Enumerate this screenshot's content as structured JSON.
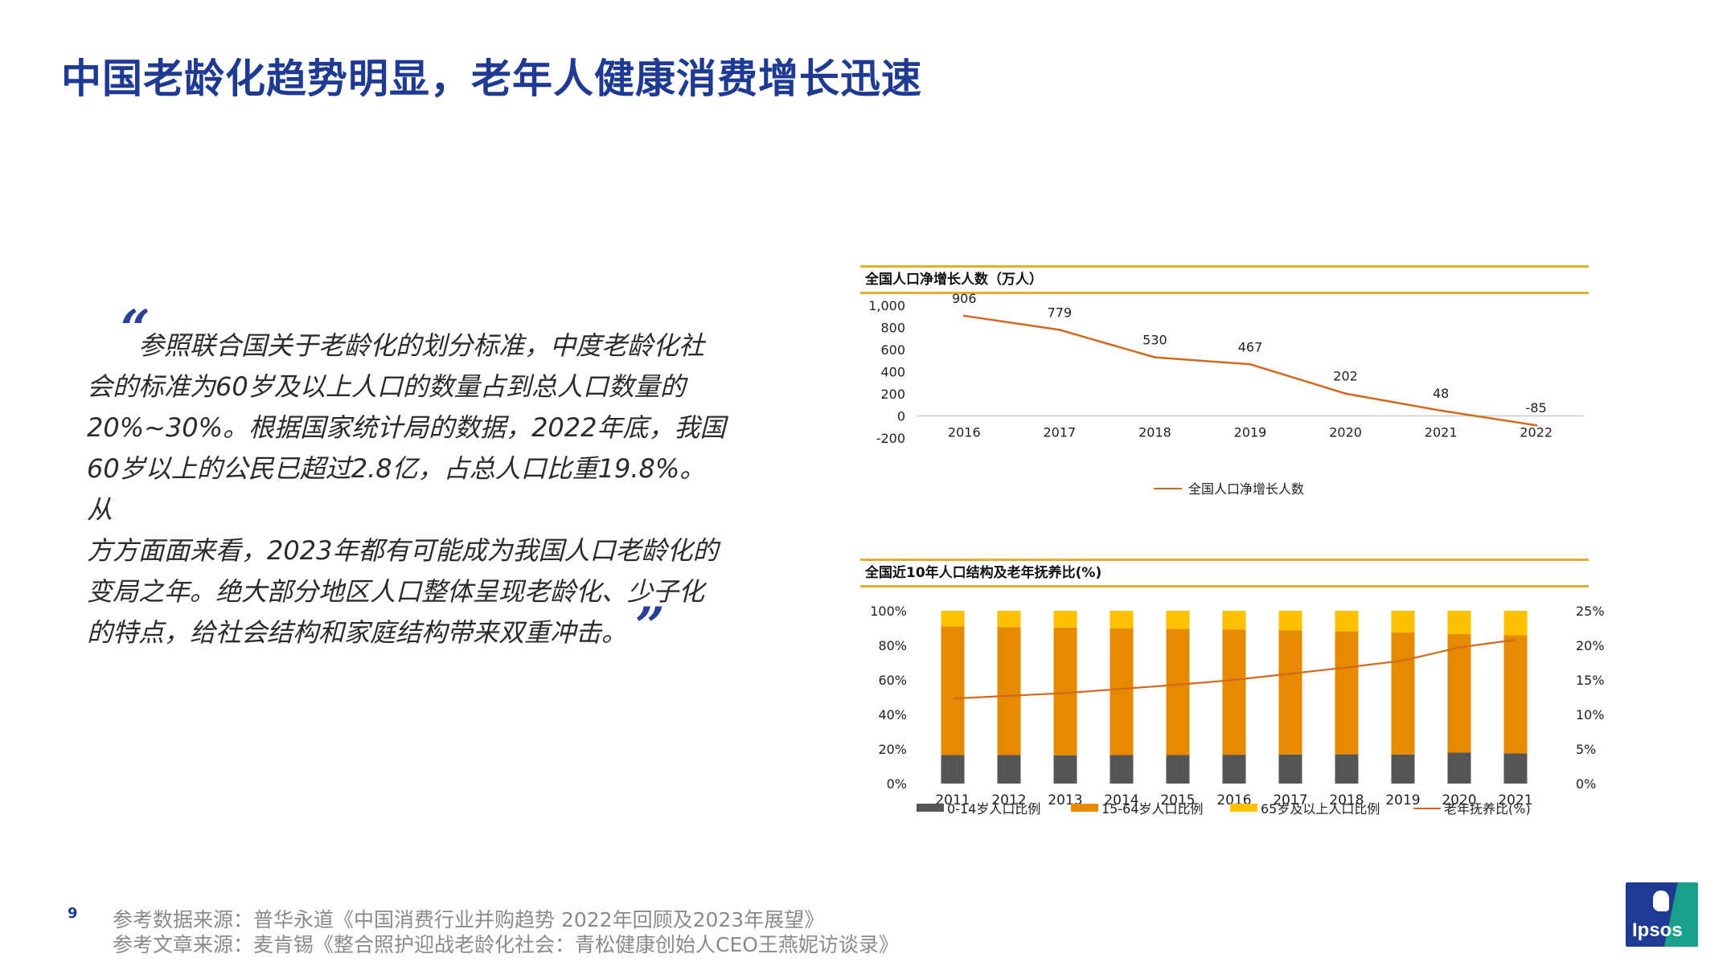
{
  "page": {
    "title": "中国老龄化趋势明显，老年人健康消费增长迅速",
    "quote_open": "“",
    "quote_close": "”",
    "quote_lines": [
      "参照联合国关于老龄化的划分标准，中度老龄化社",
      "会的标准为60岁及以上人口的数量占到总人口数量的",
      "20%~30%。根据国家统计局的数据，2022年底，我国",
      "60岁以上的公民已超过2.8亿，占总人口比重19.8%。从",
      "方方面面来看，2023年都有可能成为我国人口老龄化的",
      "变局之年。绝大部分地区人口整体呈现老龄化、少子化",
      "的特点，给社会结构和家庭结构带来双重冲击。"
    ],
    "page_number": "9",
    "footer_lines": [
      "参考数据来源：普华永道《中国消费行业并购趋势 2022年回顾及2023年展望》",
      "参考文章来源：麦肯锡《整合照护迎战老龄化社会：青松健康创始人CEO王燕妮访谈录》"
    ],
    "logo_text": "Ipsos",
    "colors": {
      "title": "#1f3a93",
      "line": "#d2691e",
      "gold": "#e0b030",
      "child": "#555555",
      "working": "#e68a00",
      "elder": "#ffc000"
    }
  },
  "chart_data": [
    {
      "type": "line",
      "title": "全国人口净增长人数（万人）",
      "x": [
        "2016",
        "2017",
        "2018",
        "2019",
        "2020",
        "2021",
        "2022"
      ],
      "series": [
        {
          "name": "全国人口净增长人数",
          "values": [
            906,
            779,
            530,
            467,
            202,
            48,
            -85
          ]
        }
      ],
      "data_labels": [
        "906",
        "779",
        "530",
        "467",
        "202",
        "48",
        "-85"
      ],
      "y_ticks": [
        "1,000",
        "800",
        "600",
        "400",
        "200",
        "0",
        "-200"
      ],
      "ylim": [
        -200,
        1000
      ],
      "legend": "bottom",
      "grid": false
    },
    {
      "type": "bar",
      "stacked": true,
      "title": "全国近10年人口结构及老年抚养比(%)",
      "categories": [
        "2011",
        "2012",
        "2013",
        "2014",
        "2015",
        "2016",
        "2017",
        "2018",
        "2019",
        "2020",
        "2021"
      ],
      "series": [
        {
          "name": "0-14岁人口比例",
          "values": [
            16.5,
            16.5,
            16.4,
            16.5,
            16.5,
            16.7,
            16.8,
            16.9,
            16.8,
            17.9,
            17.5
          ]
        },
        {
          "name": "15-64岁人口比例",
          "values": [
            74.4,
            74.1,
            73.9,
            73.4,
            73.0,
            72.5,
            71.8,
            71.2,
            70.6,
            68.6,
            68.3
          ]
        },
        {
          "name": "65岁及以上人口比例",
          "values": [
            9.1,
            9.4,
            9.7,
            10.1,
            10.5,
            10.8,
            11.4,
            11.9,
            12.6,
            13.5,
            14.2
          ]
        }
      ],
      "line_series": {
        "name": "老年抚养比(%)",
        "axis": "right",
        "values": [
          12.3,
          12.7,
          13.1,
          13.7,
          14.3,
          15.0,
          15.9,
          16.8,
          17.8,
          19.7,
          20.8
        ]
      },
      "y_left_ticks": [
        "100%",
        "80%",
        "60%",
        "40%",
        "20%",
        "0%"
      ],
      "y_right_ticks": [
        "25%",
        "20%",
        "15%",
        "10%",
        "5%",
        "0%"
      ],
      "ylim_left": [
        0,
        100
      ],
      "ylim_right": [
        0,
        25
      ],
      "legend": "bottom",
      "grid": false
    }
  ]
}
